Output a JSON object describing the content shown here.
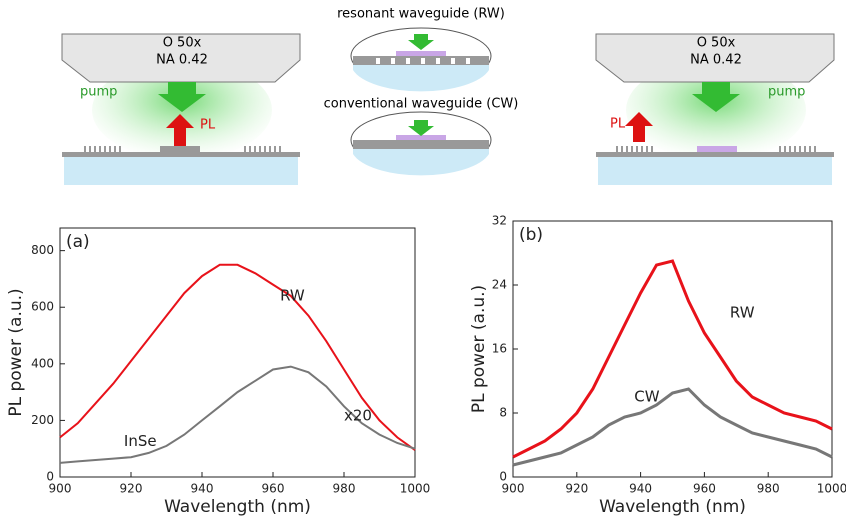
{
  "diagram": {
    "left": {
      "objective_line1": "O 50x",
      "objective_line2": "NA 0.42",
      "pump": "pump",
      "pl": "PL"
    },
    "middle": {
      "top_label": "resonant waveguide (RW)",
      "bottom_label": "conventional waveguide (CW)"
    },
    "right": {
      "objective_line1": "O 50x",
      "objective_line2": "NA 0.42",
      "pump": "pump",
      "pl": "PL"
    }
  },
  "chart_data": [
    {
      "type": "line",
      "panel_label": "(a)",
      "xlabel": "Wavelength (nm)",
      "ylabel": "PL power (a.u.)",
      "x": [
        900,
        905,
        910,
        915,
        920,
        925,
        930,
        935,
        940,
        945,
        950,
        955,
        960,
        965,
        970,
        975,
        980,
        985,
        990,
        995,
        1000
      ],
      "series": [
        {
          "name": "RW",
          "color": "#e8121a",
          "values": [
            140,
            190,
            260,
            330,
            410,
            490,
            570,
            650,
            710,
            750,
            750,
            720,
            680,
            640,
            570,
            480,
            380,
            280,
            200,
            140,
            95
          ]
        },
        {
          "name": "InSe",
          "color": "#777777",
          "values": [
            50,
            55,
            60,
            65,
            70,
            85,
            110,
            150,
            200,
            250,
            300,
            340,
            380,
            390,
            370,
            320,
            250,
            190,
            150,
            120,
            100
          ]
        }
      ],
      "annotations": [
        "x20"
      ],
      "xlim": [
        900,
        1000
      ],
      "xticks": [
        900,
        920,
        940,
        960,
        980,
        1000
      ],
      "ylim": [
        0,
        880
      ],
      "yticks": [
        0,
        200,
        400,
        600,
        800
      ]
    },
    {
      "type": "line",
      "panel_label": "(b)",
      "xlabel": "Wavelength (nm)",
      "ylabel": "PL power (a.u.)",
      "x": [
        900,
        905,
        910,
        915,
        920,
        925,
        930,
        935,
        940,
        945,
        950,
        955,
        960,
        965,
        970,
        975,
        980,
        985,
        990,
        995,
        1000
      ],
      "series": [
        {
          "name": "RW",
          "color": "#e8121a",
          "values": [
            2.5,
            3.5,
            4.5,
            6,
            8,
            11,
            15,
            19,
            23,
            26.5,
            27,
            22,
            18,
            15,
            12,
            10,
            9,
            8,
            7.5,
            7,
            6
          ]
        },
        {
          "name": "CW",
          "color": "#777777",
          "values": [
            1.5,
            2,
            2.5,
            3,
            4,
            5,
            6.5,
            7.5,
            8,
            9,
            10.5,
            11,
            9,
            7.5,
            6.5,
            5.5,
            5,
            4.5,
            4,
            3.5,
            2.5
          ]
        }
      ],
      "annotations": [],
      "xlim": [
        900,
        1000
      ],
      "xticks": [
        900,
        920,
        940,
        960,
        980,
        1000
      ],
      "ylim": [
        0,
        32
      ],
      "yticks": [
        0,
        8,
        16,
        24,
        32
      ]
    }
  ]
}
